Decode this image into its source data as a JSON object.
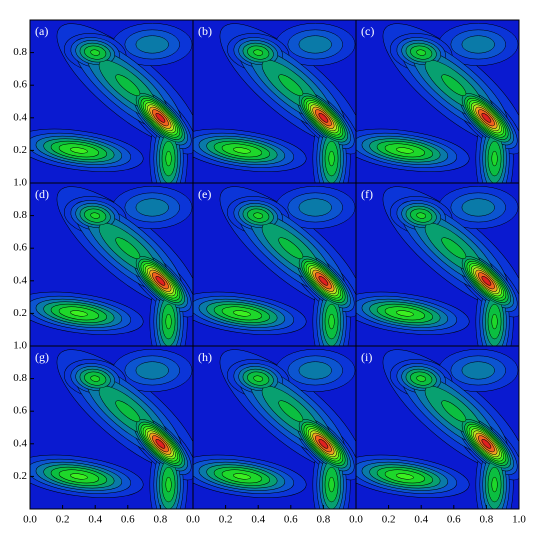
{
  "chart_data": [
    {
      "type": "contour",
      "label": "(a)",
      "xlim": [
        0,
        1
      ],
      "ylim": [
        0,
        1
      ],
      "yticks": [
        0.2,
        0.4,
        0.6,
        0.8
      ],
      "levels": [
        0.08,
        0.16,
        0.24,
        0.32,
        0.4,
        0.48,
        0.56,
        0.64,
        0.72,
        0.8,
        0.88,
        0.96
      ],
      "colors": [
        "#0a1ad0",
        "#0b35d8",
        "#0c55d0",
        "#0a7aa8",
        "#08a070",
        "#0bbf40",
        "#1ed82a",
        "#3cf020",
        "#80f020",
        "#c0e020",
        "#f0a020",
        "#f06020",
        "#e02020"
      ],
      "peaks": [
        {
          "x": 0.6,
          "y": 0.6,
          "sx": 0.3,
          "sy": 0.1,
          "angle": -40,
          "amp": 0.42
        },
        {
          "x": 0.75,
          "y": 0.85,
          "sx": 0.15,
          "sy": 0.08,
          "angle": 0,
          "amp": 0.3
        },
        {
          "x": 0.4,
          "y": 0.8,
          "sx": 0.1,
          "sy": 0.06,
          "angle": -10,
          "amp": 0.5
        },
        {
          "x": 0.85,
          "y": 0.15,
          "sx": 0.06,
          "sy": 0.16,
          "angle": 0,
          "amp": 0.5
        },
        {
          "x": 0.3,
          "y": 0.2,
          "sx": 0.2,
          "sy": 0.06,
          "angle": -8,
          "amp": 0.58
        },
        {
          "x": 0.8,
          "y": 0.4,
          "sx": 0.13,
          "sy": 0.05,
          "angle": -45,
          "amp": 1.0
        }
      ]
    },
    {
      "type": "contour",
      "label": "(b)",
      "xlim": [
        0,
        1
      ],
      "ylim": [
        0,
        1
      ],
      "levels": [
        0.08,
        0.16,
        0.24,
        0.32,
        0.4,
        0.48,
        0.56,
        0.64,
        0.72,
        0.8,
        0.88,
        0.96
      ],
      "colors": [
        "#0a1ad0",
        "#0b35d8",
        "#0c55d0",
        "#0a7aa8",
        "#08a070",
        "#0bbf40",
        "#1ed82a",
        "#3cf020",
        "#80f020",
        "#c0e020",
        "#f0a020",
        "#f06020",
        "#e02020"
      ],
      "peaks": [
        {
          "x": 0.6,
          "y": 0.6,
          "sx": 0.3,
          "sy": 0.1,
          "angle": -40,
          "amp": 0.42
        },
        {
          "x": 0.75,
          "y": 0.85,
          "sx": 0.15,
          "sy": 0.08,
          "angle": 0,
          "amp": 0.3
        },
        {
          "x": 0.4,
          "y": 0.8,
          "sx": 0.1,
          "sy": 0.06,
          "angle": -10,
          "amp": 0.5
        },
        {
          "x": 0.85,
          "y": 0.15,
          "sx": 0.06,
          "sy": 0.16,
          "angle": 0,
          "amp": 0.5
        },
        {
          "x": 0.3,
          "y": 0.2,
          "sx": 0.2,
          "sy": 0.06,
          "angle": -8,
          "amp": 0.58
        },
        {
          "x": 0.8,
          "y": 0.4,
          "sx": 0.13,
          "sy": 0.05,
          "angle": -45,
          "amp": 1.0
        }
      ]
    },
    {
      "type": "contour",
      "label": "(c)",
      "xlim": [
        0,
        1
      ],
      "ylim": [
        0,
        1
      ],
      "levels": [
        0.08,
        0.16,
        0.24,
        0.32,
        0.4,
        0.48,
        0.56,
        0.64,
        0.72,
        0.8,
        0.88,
        0.96
      ],
      "colors": [
        "#0a1ad0",
        "#0b35d8",
        "#0c55d0",
        "#0a7aa8",
        "#08a070",
        "#0bbf40",
        "#1ed82a",
        "#3cf020",
        "#80f020",
        "#c0e020",
        "#f0a020",
        "#f06020",
        "#e02020"
      ],
      "peaks": [
        {
          "x": 0.6,
          "y": 0.6,
          "sx": 0.3,
          "sy": 0.1,
          "angle": -40,
          "amp": 0.42
        },
        {
          "x": 0.75,
          "y": 0.85,
          "sx": 0.15,
          "sy": 0.08,
          "angle": 0,
          "amp": 0.3
        },
        {
          "x": 0.4,
          "y": 0.8,
          "sx": 0.1,
          "sy": 0.06,
          "angle": -10,
          "amp": 0.5
        },
        {
          "x": 0.85,
          "y": 0.15,
          "sx": 0.06,
          "sy": 0.16,
          "angle": 0,
          "amp": 0.5
        },
        {
          "x": 0.3,
          "y": 0.2,
          "sx": 0.2,
          "sy": 0.06,
          "angle": -8,
          "amp": 0.58
        },
        {
          "x": 0.8,
          "y": 0.4,
          "sx": 0.13,
          "sy": 0.05,
          "angle": -45,
          "amp": 1.0
        }
      ]
    },
    {
      "type": "contour",
      "label": "(d)",
      "xlim": [
        0,
        1
      ],
      "ylim": [
        0,
        1
      ],
      "yticks": [
        0.2,
        0.4,
        0.6,
        0.8,
        {
          "value": 1,
          "label": "1.0"
        }
      ],
      "levels": [
        0.08,
        0.16,
        0.24,
        0.32,
        0.4,
        0.48,
        0.56,
        0.64,
        0.72,
        0.8,
        0.88,
        0.96
      ],
      "colors": [
        "#0a1ad0",
        "#0b35d8",
        "#0c55d0",
        "#0a7aa8",
        "#08a070",
        "#0bbf40",
        "#1ed82a",
        "#3cf020",
        "#80f020",
        "#c0e020",
        "#f0a020",
        "#f06020",
        "#e02020"
      ],
      "peaks": [
        {
          "x": 0.6,
          "y": 0.6,
          "sx": 0.3,
          "sy": 0.1,
          "angle": -40,
          "amp": 0.42
        },
        {
          "x": 0.75,
          "y": 0.85,
          "sx": 0.15,
          "sy": 0.08,
          "angle": 0,
          "amp": 0.3
        },
        {
          "x": 0.4,
          "y": 0.8,
          "sx": 0.1,
          "sy": 0.06,
          "angle": -10,
          "amp": 0.5
        },
        {
          "x": 0.85,
          "y": 0.15,
          "sx": 0.06,
          "sy": 0.16,
          "angle": 0,
          "amp": 0.5
        },
        {
          "x": 0.3,
          "y": 0.2,
          "sx": 0.2,
          "sy": 0.06,
          "angle": -8,
          "amp": 0.58
        },
        {
          "x": 0.8,
          "y": 0.4,
          "sx": 0.13,
          "sy": 0.05,
          "angle": -45,
          "amp": 1.0
        }
      ]
    },
    {
      "type": "contour",
      "label": "(e)",
      "xlim": [
        0,
        1
      ],
      "ylim": [
        0,
        1
      ],
      "levels": [
        0.08,
        0.16,
        0.24,
        0.32,
        0.4,
        0.48,
        0.56,
        0.64,
        0.72,
        0.8,
        0.88,
        0.96
      ],
      "colors": [
        "#0a1ad0",
        "#0b35d8",
        "#0c55d0",
        "#0a7aa8",
        "#08a070",
        "#0bbf40",
        "#1ed82a",
        "#3cf020",
        "#80f020",
        "#c0e020",
        "#f0a020",
        "#f06020",
        "#e02020"
      ],
      "peaks": [
        {
          "x": 0.6,
          "y": 0.6,
          "sx": 0.3,
          "sy": 0.1,
          "angle": -40,
          "amp": 0.42
        },
        {
          "x": 0.75,
          "y": 0.85,
          "sx": 0.15,
          "sy": 0.08,
          "angle": 0,
          "amp": 0.3
        },
        {
          "x": 0.4,
          "y": 0.8,
          "sx": 0.1,
          "sy": 0.06,
          "angle": -10,
          "amp": 0.5
        },
        {
          "x": 0.85,
          "y": 0.15,
          "sx": 0.06,
          "sy": 0.16,
          "angle": 0,
          "amp": 0.5
        },
        {
          "x": 0.3,
          "y": 0.2,
          "sx": 0.2,
          "sy": 0.06,
          "angle": -8,
          "amp": 0.58
        },
        {
          "x": 0.8,
          "y": 0.4,
          "sx": 0.13,
          "sy": 0.05,
          "angle": -45,
          "amp": 1.0
        }
      ]
    },
    {
      "type": "contour",
      "label": "(f)",
      "xlim": [
        0,
        1
      ],
      "ylim": [
        0,
        1
      ],
      "levels": [
        0.08,
        0.16,
        0.24,
        0.32,
        0.4,
        0.48,
        0.56,
        0.64,
        0.72,
        0.8,
        0.88,
        0.96
      ],
      "colors": [
        "#0a1ad0",
        "#0b35d8",
        "#0c55d0",
        "#0a7aa8",
        "#08a070",
        "#0bbf40",
        "#1ed82a",
        "#3cf020",
        "#80f020",
        "#c0e020",
        "#f0a020",
        "#f06020",
        "#e02020"
      ],
      "peaks": [
        {
          "x": 0.6,
          "y": 0.6,
          "sx": 0.3,
          "sy": 0.1,
          "angle": -40,
          "amp": 0.42
        },
        {
          "x": 0.75,
          "y": 0.85,
          "sx": 0.15,
          "sy": 0.08,
          "angle": 0,
          "amp": 0.3
        },
        {
          "x": 0.4,
          "y": 0.8,
          "sx": 0.1,
          "sy": 0.06,
          "angle": -10,
          "amp": 0.5
        },
        {
          "x": 0.85,
          "y": 0.15,
          "sx": 0.06,
          "sy": 0.16,
          "angle": 0,
          "amp": 0.5
        },
        {
          "x": 0.3,
          "y": 0.2,
          "sx": 0.2,
          "sy": 0.06,
          "angle": -8,
          "amp": 0.58
        },
        {
          "x": 0.8,
          "y": 0.4,
          "sx": 0.13,
          "sy": 0.05,
          "angle": -45,
          "amp": 1.0
        }
      ]
    },
    {
      "type": "contour",
      "label": "(g)",
      "xlim": [
        0,
        1
      ],
      "ylim": [
        0,
        1
      ],
      "yticks": [
        0.2,
        0.4,
        0.6,
        0.8,
        {
          "value": 1,
          "label": "1.0"
        }
      ],
      "xticks": [
        {
          "value": 0,
          "label": "0.0"
        },
        0.2,
        0.4,
        0.6,
        0.8
      ],
      "levels": [
        0.08,
        0.16,
        0.24,
        0.32,
        0.4,
        0.48,
        0.56,
        0.64,
        0.72,
        0.8,
        0.88,
        0.96
      ],
      "colors": [
        "#0a1ad0",
        "#0b35d8",
        "#0c55d0",
        "#0a7aa8",
        "#08a070",
        "#0bbf40",
        "#1ed82a",
        "#3cf020",
        "#80f020",
        "#c0e020",
        "#f0a020",
        "#f06020",
        "#e02020"
      ],
      "peaks": [
        {
          "x": 0.6,
          "y": 0.6,
          "sx": 0.3,
          "sy": 0.1,
          "angle": -40,
          "amp": 0.42
        },
        {
          "x": 0.75,
          "y": 0.85,
          "sx": 0.15,
          "sy": 0.08,
          "angle": 0,
          "amp": 0.3
        },
        {
          "x": 0.4,
          "y": 0.8,
          "sx": 0.1,
          "sy": 0.06,
          "angle": -10,
          "amp": 0.5
        },
        {
          "x": 0.85,
          "y": 0.15,
          "sx": 0.06,
          "sy": 0.16,
          "angle": 0,
          "amp": 0.5
        },
        {
          "x": 0.3,
          "y": 0.2,
          "sx": 0.2,
          "sy": 0.06,
          "angle": -8,
          "amp": 0.58
        },
        {
          "x": 0.8,
          "y": 0.4,
          "sx": 0.13,
          "sy": 0.05,
          "angle": -45,
          "amp": 1.0
        }
      ]
    },
    {
      "type": "contour",
      "label": "(h)",
      "xlim": [
        0,
        1
      ],
      "ylim": [
        0,
        1
      ],
      "xticks": [
        {
          "value": 0,
          "label": "0.0"
        },
        0.2,
        0.4,
        0.6,
        0.8
      ],
      "levels": [
        0.08,
        0.16,
        0.24,
        0.32,
        0.4,
        0.48,
        0.56,
        0.64,
        0.72,
        0.8,
        0.88,
        0.96
      ],
      "colors": [
        "#0a1ad0",
        "#0b35d8",
        "#0c55d0",
        "#0a7aa8",
        "#08a070",
        "#0bbf40",
        "#1ed82a",
        "#3cf020",
        "#80f020",
        "#c0e020",
        "#f0a020",
        "#f06020",
        "#e02020"
      ],
      "peaks": [
        {
          "x": 0.6,
          "y": 0.6,
          "sx": 0.3,
          "sy": 0.1,
          "angle": -40,
          "amp": 0.42
        },
        {
          "x": 0.75,
          "y": 0.85,
          "sx": 0.15,
          "sy": 0.08,
          "angle": 0,
          "amp": 0.3
        },
        {
          "x": 0.4,
          "y": 0.8,
          "sx": 0.1,
          "sy": 0.06,
          "angle": -10,
          "amp": 0.5
        },
        {
          "x": 0.85,
          "y": 0.15,
          "sx": 0.06,
          "sy": 0.16,
          "angle": 0,
          "amp": 0.5
        },
        {
          "x": 0.3,
          "y": 0.2,
          "sx": 0.2,
          "sy": 0.06,
          "angle": -8,
          "amp": 0.58
        },
        {
          "x": 0.8,
          "y": 0.4,
          "sx": 0.13,
          "sy": 0.05,
          "angle": -45,
          "amp": 1.0
        }
      ]
    },
    {
      "type": "contour",
      "label": "(i)",
      "xlim": [
        0,
        1
      ],
      "ylim": [
        0,
        1
      ],
      "xticks": [
        {
          "value": 0,
          "label": "0.0"
        },
        0.2,
        0.4,
        0.6,
        0.8,
        {
          "value": 1,
          "label": "1.0"
        }
      ],
      "levels": [
        0.08,
        0.16,
        0.24,
        0.32,
        0.4,
        0.48,
        0.56,
        0.64,
        0.72,
        0.8,
        0.88,
        0.96
      ],
      "colors": [
        "#0a1ad0",
        "#0b35d8",
        "#0c55d0",
        "#0a7aa8",
        "#08a070",
        "#0bbf40",
        "#1ed82a",
        "#3cf020",
        "#80f020",
        "#c0e020",
        "#f0a020",
        "#f06020",
        "#e02020"
      ],
      "peaks": [
        {
          "x": 0.6,
          "y": 0.6,
          "sx": 0.3,
          "sy": 0.1,
          "angle": -40,
          "amp": 0.42
        },
        {
          "x": 0.75,
          "y": 0.85,
          "sx": 0.15,
          "sy": 0.08,
          "angle": 0,
          "amp": 0.3
        },
        {
          "x": 0.4,
          "y": 0.8,
          "sx": 0.1,
          "sy": 0.06,
          "angle": -10,
          "amp": 0.5
        },
        {
          "x": 0.85,
          "y": 0.15,
          "sx": 0.06,
          "sy": 0.16,
          "angle": 0,
          "amp": 0.5
        },
        {
          "x": 0.3,
          "y": 0.2,
          "sx": 0.2,
          "sy": 0.06,
          "angle": -8,
          "amp": 0.58
        },
        {
          "x": 0.8,
          "y": 0.4,
          "sx": 0.13,
          "sy": 0.05,
          "angle": -45,
          "amp": 1.0
        }
      ]
    }
  ]
}
